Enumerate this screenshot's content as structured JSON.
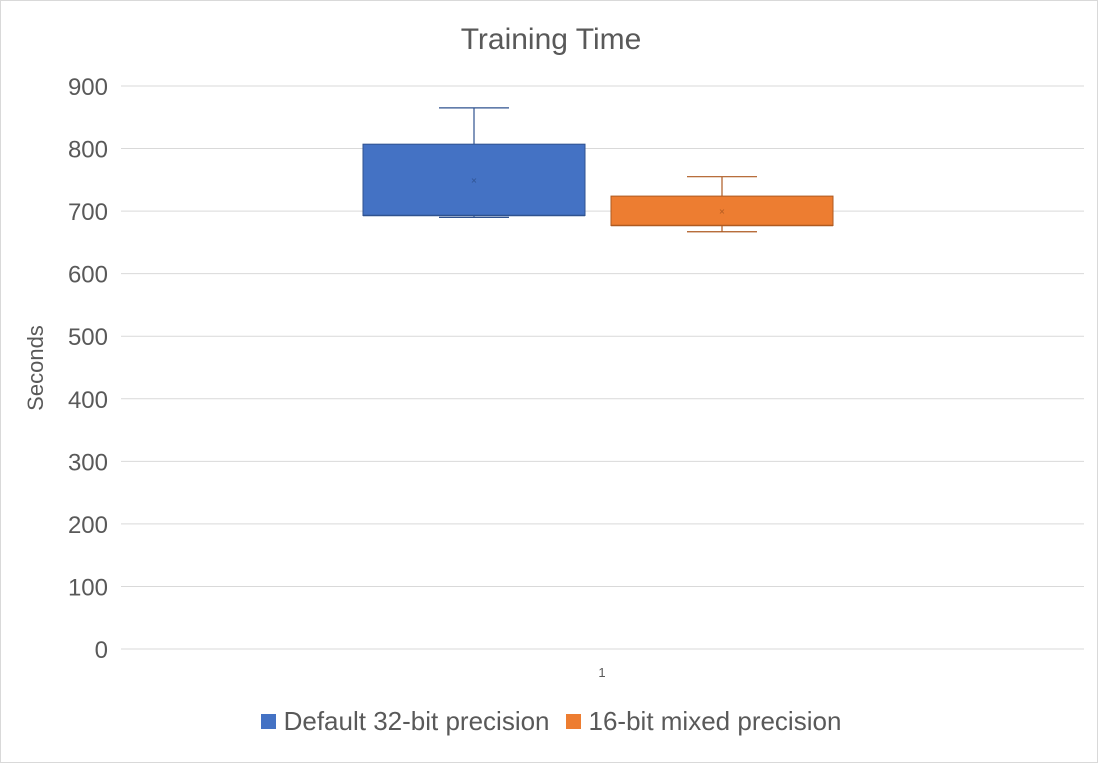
{
  "chart_data": {
    "type": "box",
    "title": "Training Time",
    "xlabel": "",
    "ylabel": "Seconds",
    "ylim": [
      0,
      900
    ],
    "yticks": [
      0,
      100,
      200,
      300,
      400,
      500,
      600,
      700,
      800,
      900
    ],
    "categories": [
      "1"
    ],
    "grid": true,
    "legend_position": "bottom",
    "series": [
      {
        "name": "Default 32-bit precision",
        "color": "#4472C4",
        "min": 690,
        "q1": 693,
        "median": 693,
        "q3": 807,
        "max": 865,
        "mean": 750
      },
      {
        "name": "16-bit mixed precision",
        "color": "#ED7D31",
        "min": 667,
        "q1": 677,
        "median": 677,
        "q3": 724,
        "max": 755,
        "mean": 700
      }
    ]
  }
}
